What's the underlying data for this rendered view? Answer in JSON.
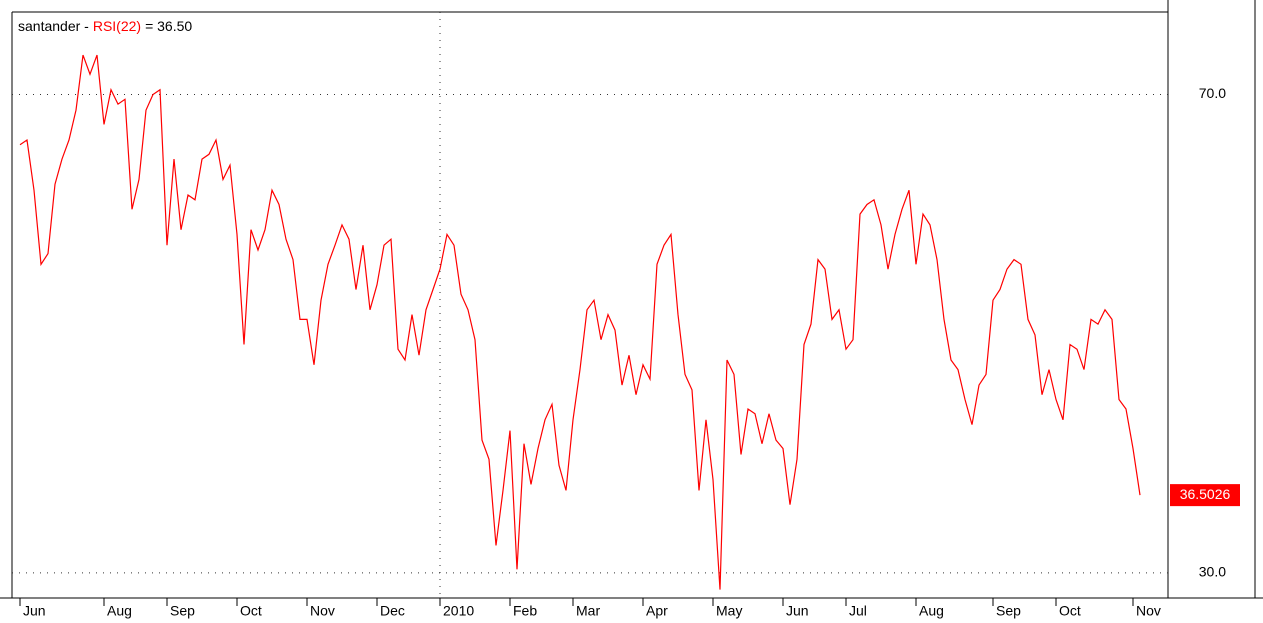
{
  "chart_data": {
    "type": "line",
    "title": {
      "symbol": "santander -",
      "indicator": "RSI(22)",
      "reading": "= 36.50"
    },
    "color": "#ff0000",
    "categories": [
      "Jun",
      null,
      null,
      null,
      null,
      null,
      null,
      null,
      null,
      null,
      null,
      null,
      "Aug",
      null,
      null,
      null,
      null,
      null,
      null,
      null,
      null,
      "Sep",
      null,
      null,
      null,
      null,
      null,
      null,
      null,
      null,
      null,
      "Oct",
      null,
      null,
      null,
      null,
      null,
      null,
      null,
      null,
      null,
      "Nov",
      null,
      null,
      null,
      null,
      null,
      null,
      null,
      null,
      null,
      "Dec",
      null,
      null,
      null,
      null,
      null,
      null,
      null,
      null,
      "2010",
      null,
      null,
      null,
      null,
      null,
      null,
      null,
      null,
      null,
      "Feb",
      null,
      null,
      null,
      null,
      null,
      null,
      null,
      null,
      "Mar",
      null,
      null,
      null,
      null,
      null,
      null,
      null,
      null,
      null,
      "Apr",
      null,
      null,
      null,
      null,
      null,
      null,
      null,
      null,
      null,
      "May",
      null,
      null,
      null,
      null,
      null,
      null,
      null,
      null,
      null,
      "Jun",
      null,
      null,
      null,
      null,
      null,
      null,
      null,
      null,
      "Jul",
      null,
      null,
      null,
      null,
      null,
      null,
      null,
      null,
      null,
      "Aug",
      null,
      null,
      null,
      null,
      null,
      null,
      null,
      null,
      null,
      null,
      "Sep",
      null,
      null,
      null,
      null,
      null,
      null,
      null,
      null,
      "Oct",
      null,
      null,
      null,
      null,
      null,
      null,
      null,
      null,
      null,
      null,
      "Nov",
      null
    ],
    "values": [
      65.8,
      66.2,
      62.0,
      55.8,
      56.7,
      62.5,
      64.6,
      66.2,
      68.7,
      73.3,
      71.7,
      73.3,
      67.5,
      70.4,
      69.2,
      69.6,
      60.4,
      62.9,
      68.7,
      70.0,
      70.4,
      57.4,
      64.6,
      58.7,
      61.6,
      61.2,
      64.6,
      65.0,
      66.2,
      62.9,
      64.1,
      58.3,
      49.1,
      58.7,
      57.0,
      58.7,
      62.0,
      60.8,
      57.9,
      56.2,
      51.2,
      51.2,
      47.4,
      52.8,
      55.8,
      57.4,
      59.1,
      57.9,
      53.7,
      57.4,
      52.0,
      54.1,
      57.4,
      57.9,
      48.7,
      47.8,
      51.6,
      48.2,
      52.0,
      53.7,
      55.4,
      58.3,
      57.4,
      53.3,
      52.0,
      49.5,
      41.1,
      39.5,
      32.3,
      36.9,
      41.9,
      30.3,
      40.8,
      37.4,
      40.4,
      42.8,
      44.1,
      39.0,
      36.9,
      42.8,
      47.0,
      52.0,
      52.8,
      49.5,
      51.6,
      50.3,
      45.7,
      48.2,
      44.9,
      47.4,
      46.2,
      55.8,
      57.4,
      58.3,
      51.6,
      46.6,
      45.3,
      36.9,
      42.8,
      37.8,
      28.6,
      47.8,
      46.6,
      39.9,
      43.7,
      43.3,
      40.8,
      43.3,
      41.1,
      40.4,
      35.7,
      39.5,
      49.1,
      50.8,
      56.2,
      55.4,
      51.2,
      52.0,
      48.7,
      49.5,
      60.0,
      60.8,
      61.2,
      59.1,
      55.4,
      58.3,
      60.4,
      62.0,
      55.8,
      60.0,
      59.1,
      56.2,
      51.2,
      47.8,
      47.0,
      44.5,
      42.4,
      45.7,
      46.6,
      52.8,
      53.7,
      55.4,
      56.2,
      55.8,
      51.2,
      49.9,
      44.9,
      47.0,
      44.5,
      42.8,
      49.1,
      48.7,
      47.0,
      51.2,
      50.8,
      52.0,
      51.2,
      44.5,
      43.7,
      40.4,
      36.5026
    ],
    "ylim": [
      27.9,
      76.9
    ],
    "yticks": [
      {
        "value": 30,
        "label": "30.0"
      },
      {
        "value": 70,
        "label": "70.0"
      }
    ],
    "grid": true
  }
}
